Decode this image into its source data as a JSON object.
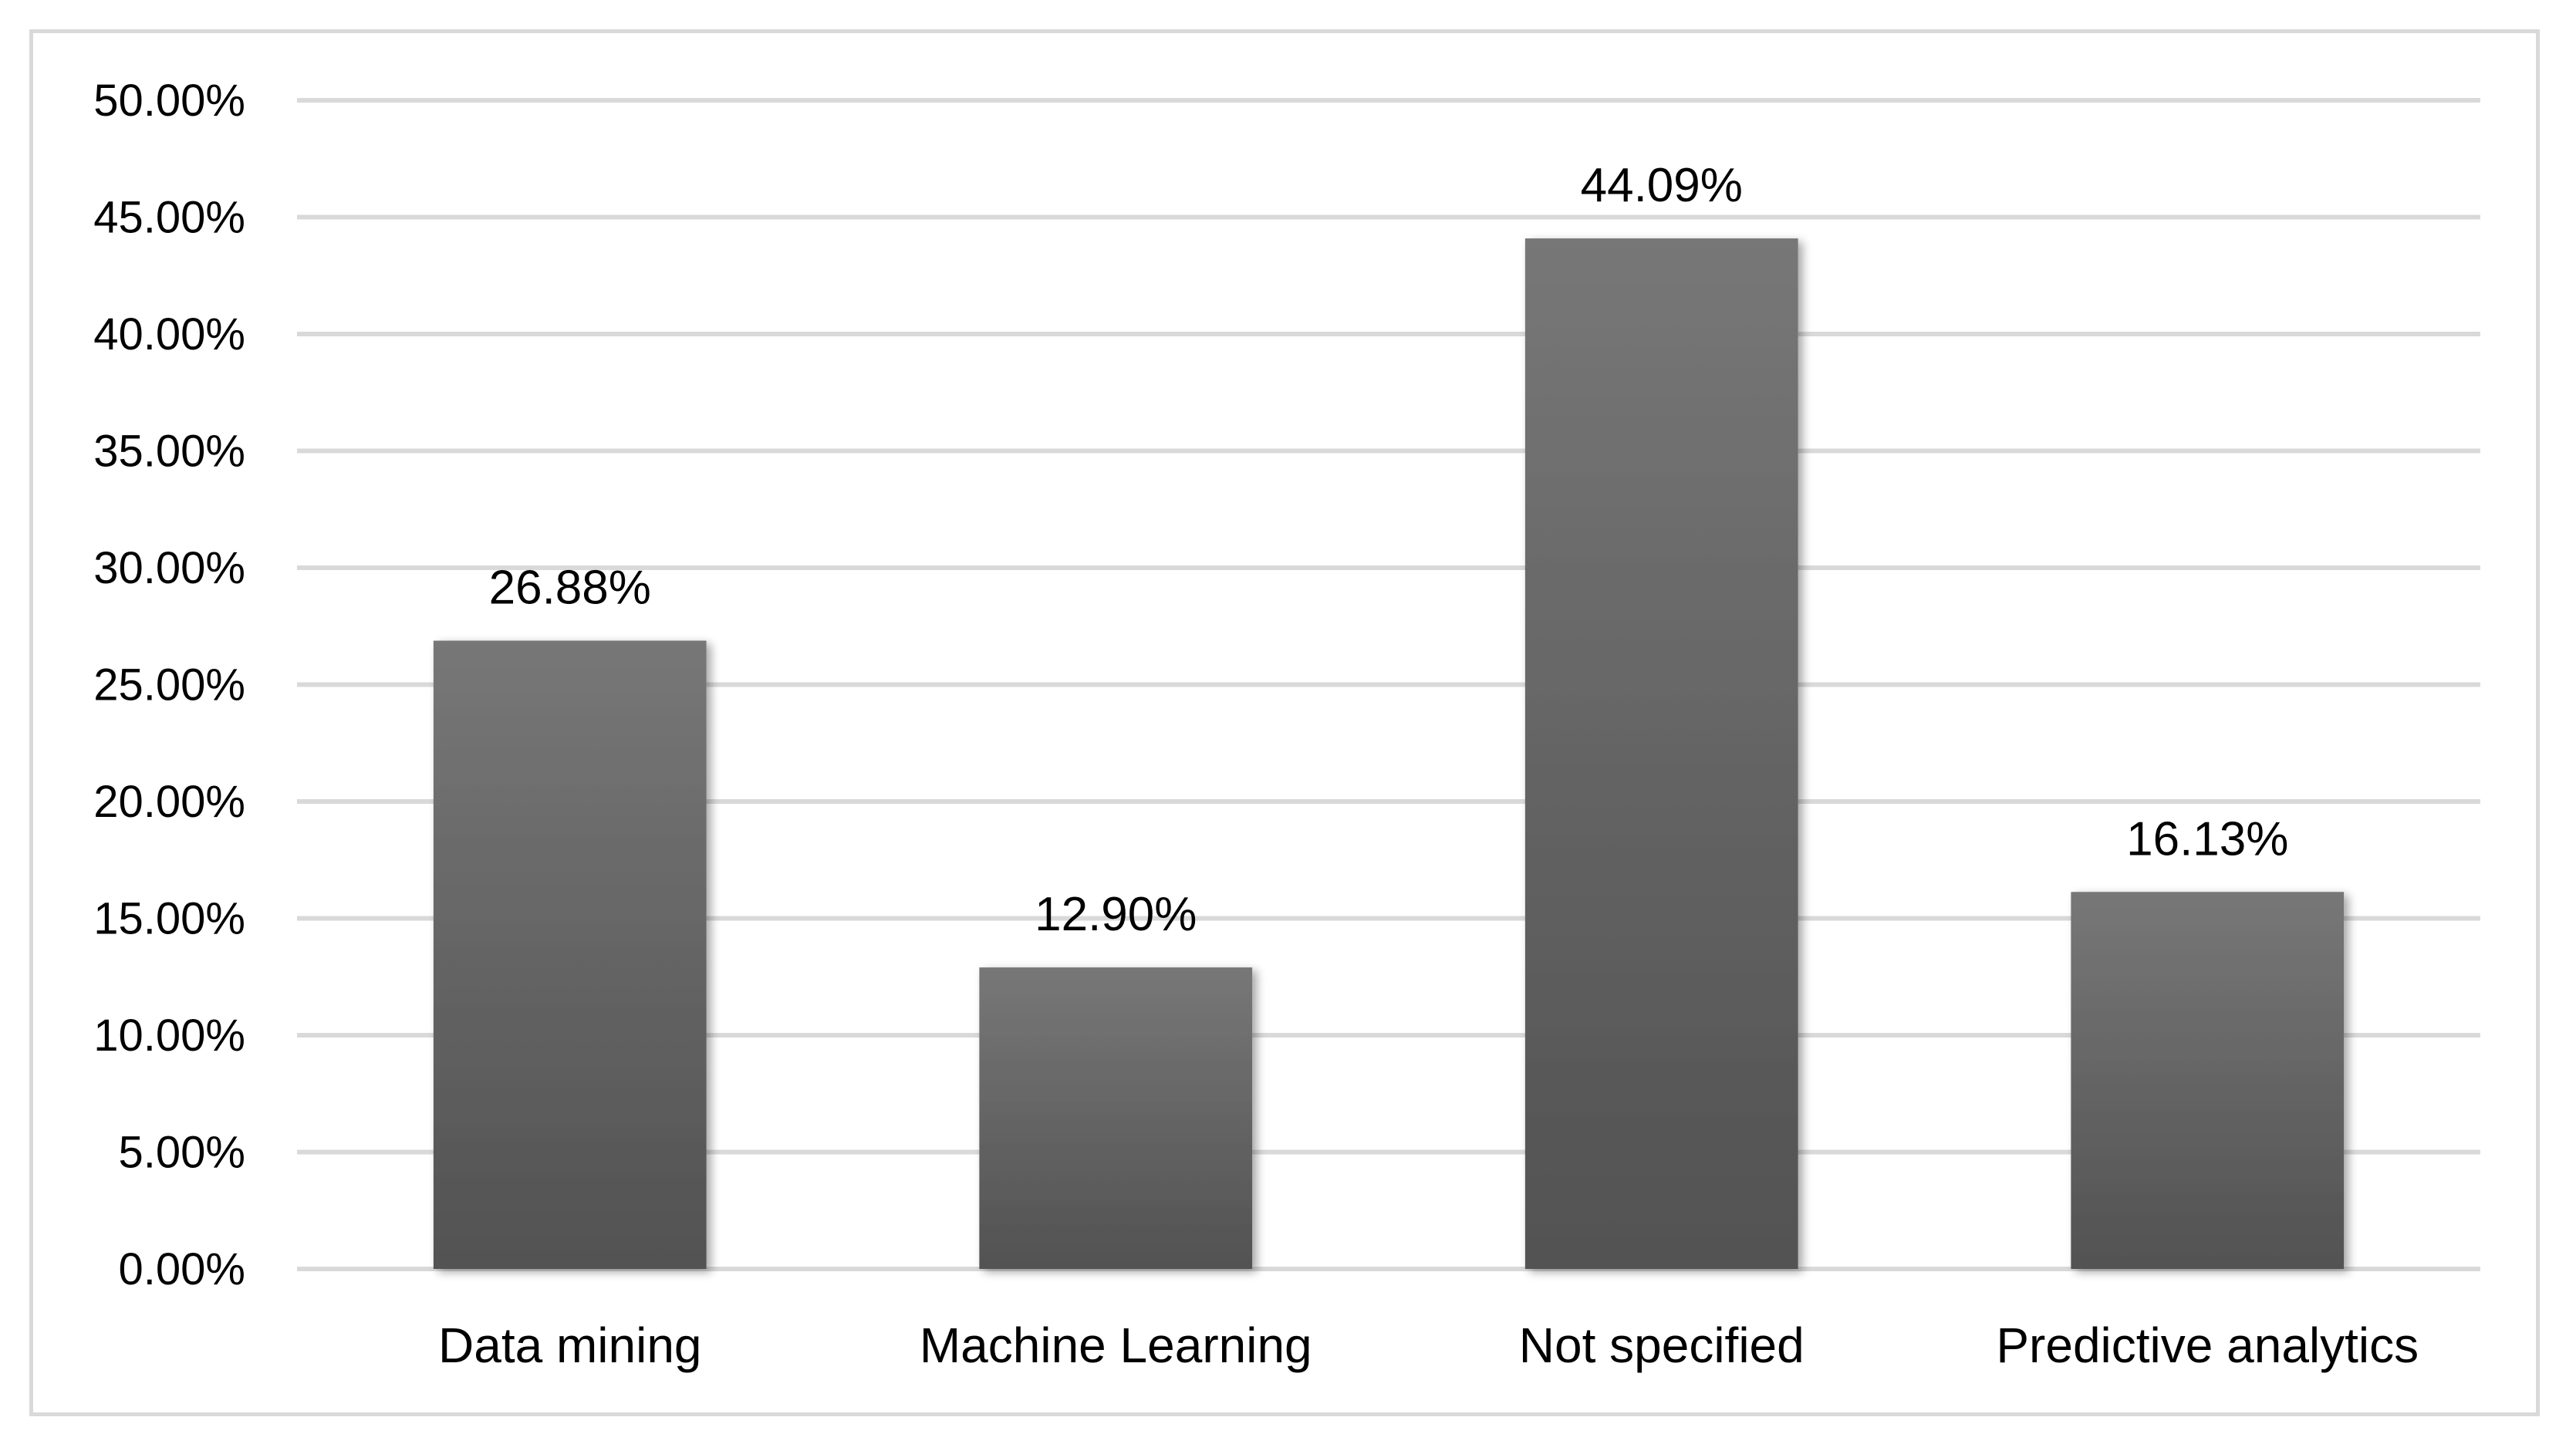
{
  "chart_data": {
    "type": "bar",
    "title": "",
    "xlabel": "",
    "ylabel": "",
    "categories": [
      "Data mining",
      "Machine Learning",
      "Not specified",
      "Predictive analytics"
    ],
    "values": [
      26.88,
      12.9,
      44.09,
      16.13
    ],
    "data_labels": [
      "26.88%",
      "12.90%",
      "44.09%",
      "16.13%"
    ],
    "ylim": [
      0,
      50
    ],
    "yticks": [
      0,
      5,
      10,
      15,
      20,
      25,
      30,
      35,
      40,
      45,
      50
    ],
    "ytick_labels": [
      "0.00%",
      "5.00%",
      "10.00%",
      "15.00%",
      "20.00%",
      "25.00%",
      "30.00%",
      "35.00%",
      "40.00%",
      "45.00%",
      "50.00%"
    ],
    "grid": true,
    "legend": "none",
    "colors": {
      "bar_top": "#777777",
      "bar_bottom": "#525252",
      "gridline": "#d9d9d9",
      "frame": "#d9d9d9",
      "text": "#000000"
    }
  }
}
